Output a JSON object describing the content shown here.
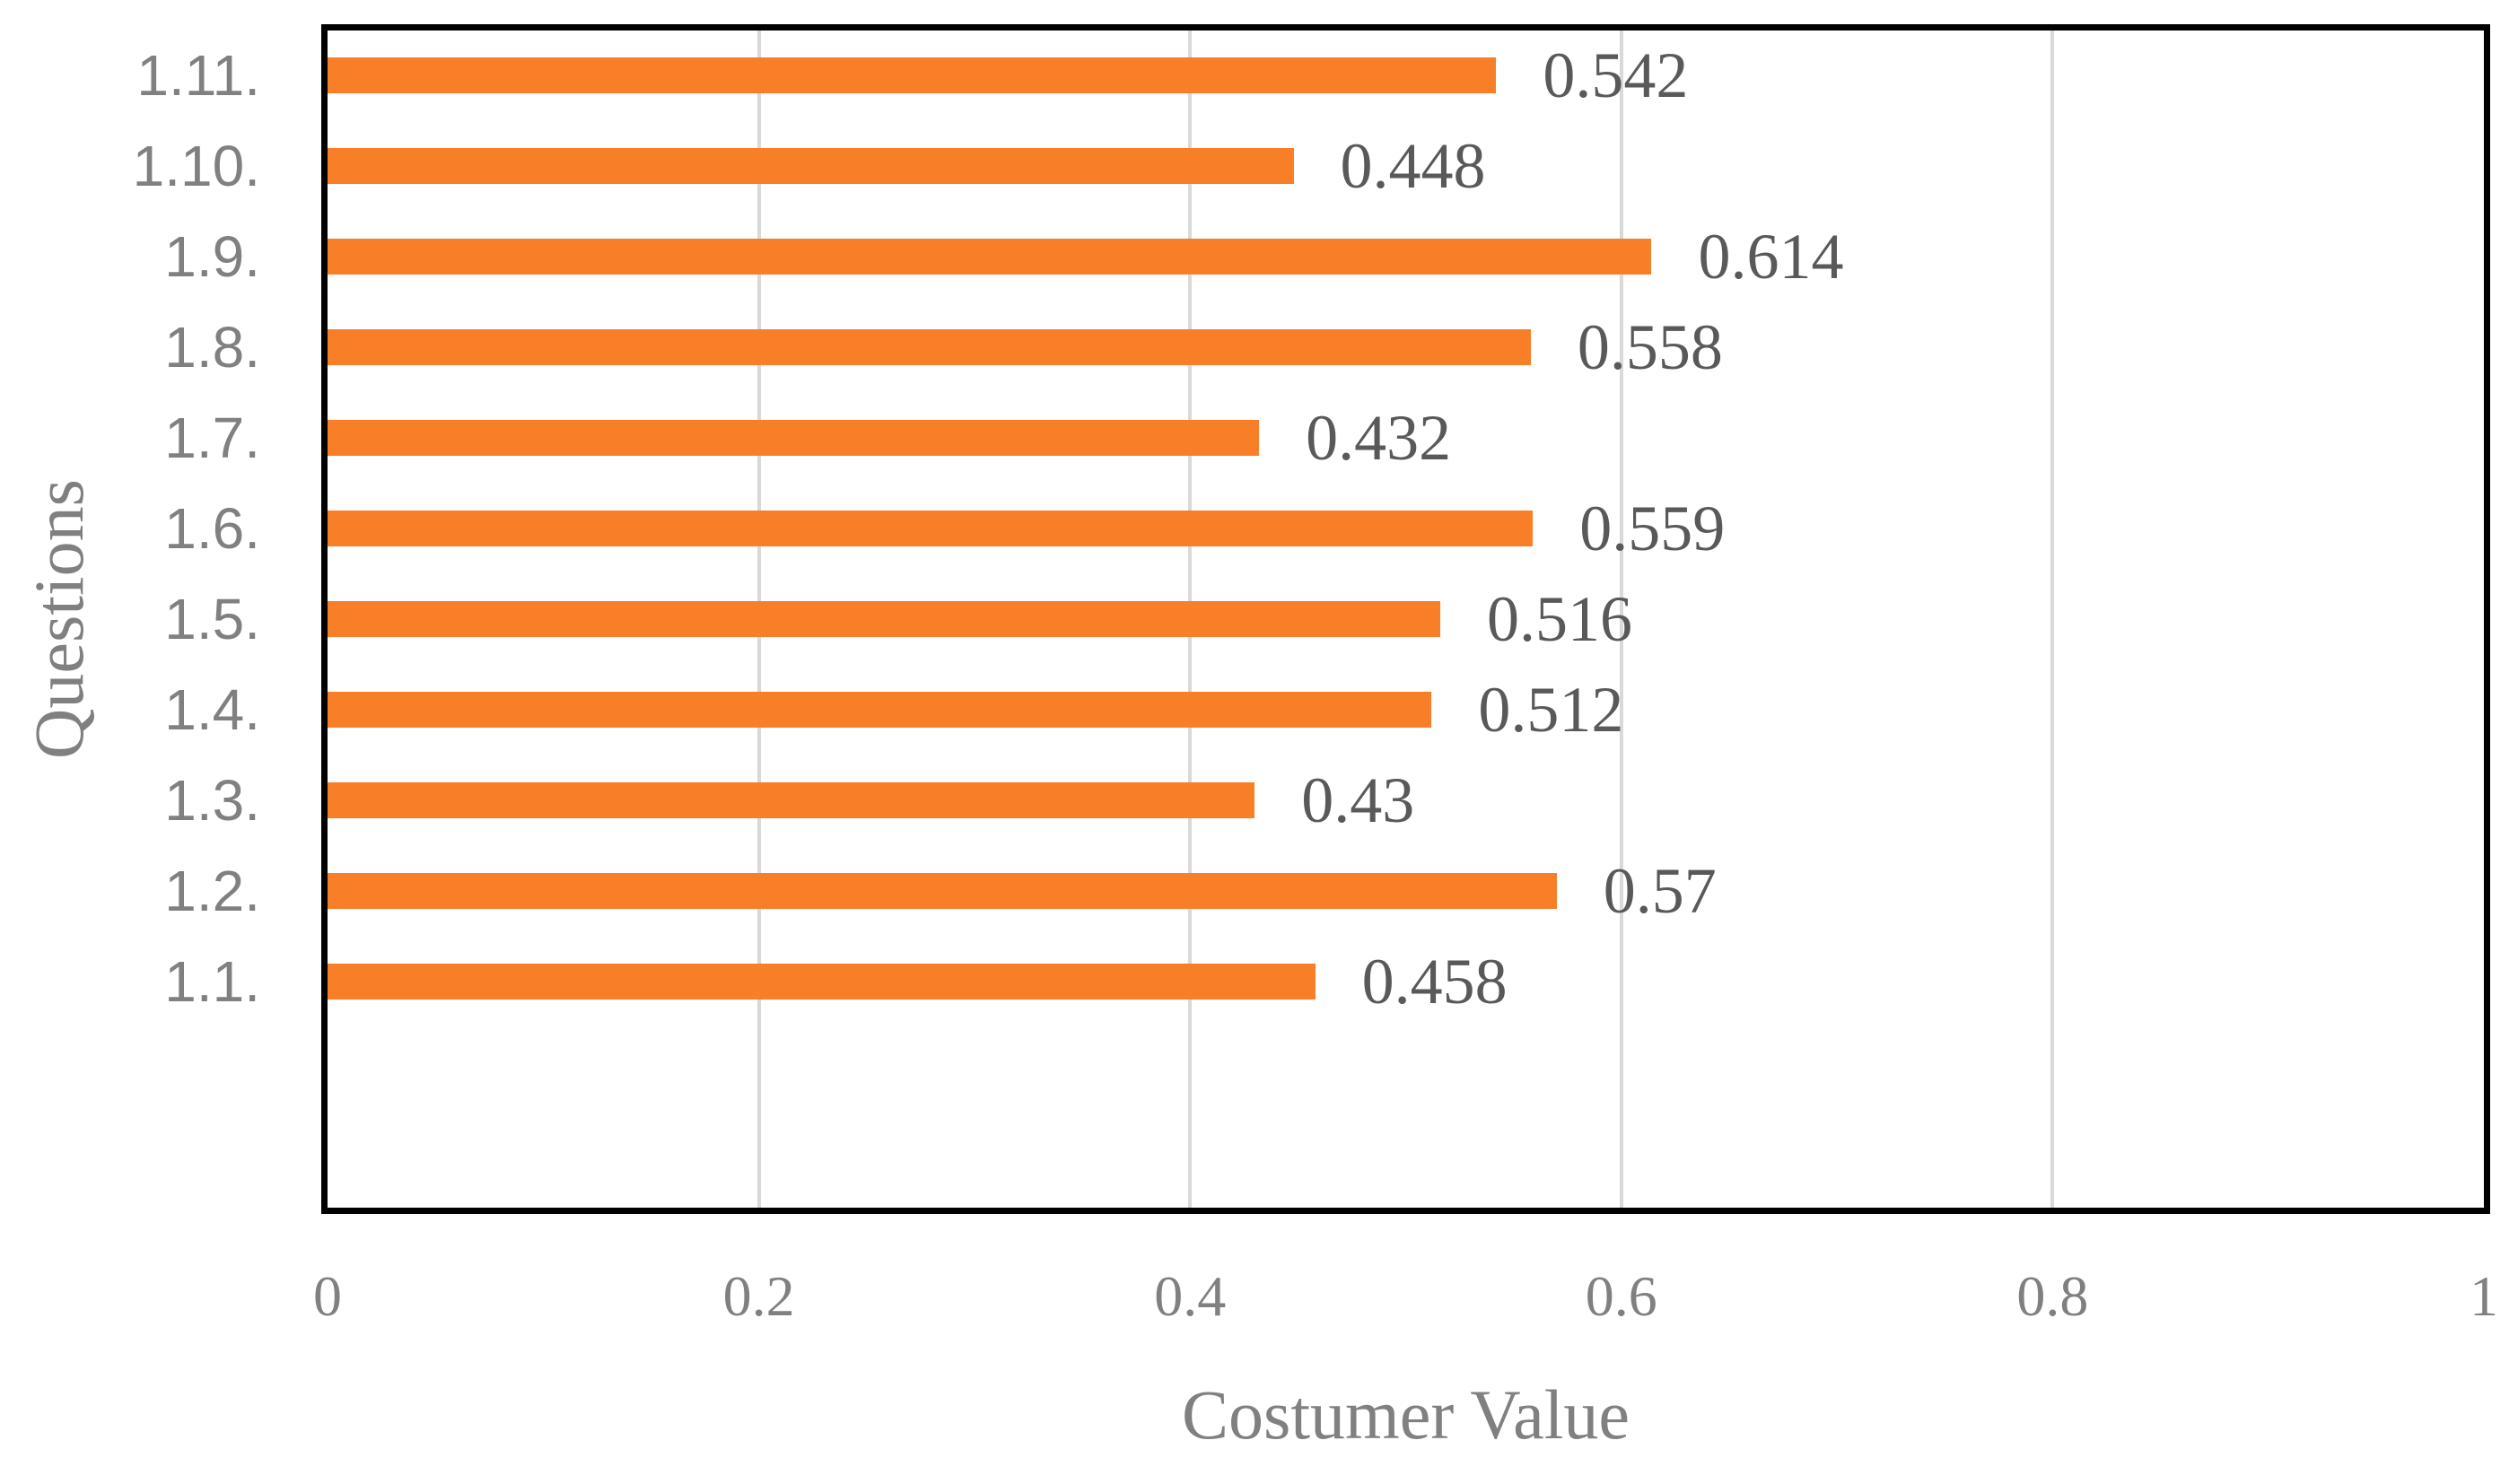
{
  "chart_data": {
    "type": "bar",
    "orientation": "horizontal",
    "title": "",
    "xlabel": "Costumer Value",
    "ylabel": "Questions",
    "categories": [
      "1.11.",
      "1.10.",
      "1.9.",
      "1.8.",
      "1.7.",
      "1.6.",
      "1.5.",
      "1.4.",
      "1.3.",
      "1.2.",
      "1.1."
    ],
    "values": [
      0.542,
      0.448,
      0.614,
      0.558,
      0.432,
      0.559,
      0.516,
      0.512,
      0.43,
      0.57,
      0.458
    ],
    "labels": [
      "0.542",
      "0.448",
      "0.614",
      "0.558",
      "0.432",
      "0.559",
      "0.516",
      "0.512",
      "0.43",
      "0.57",
      "0.458"
    ],
    "xlim": [
      0,
      1
    ],
    "xticks": [
      {
        "value": 0,
        "label": "0"
      },
      {
        "value": 0.2,
        "label": "0.2"
      },
      {
        "value": 0.4,
        "label": "0.4"
      },
      {
        "value": 0.6,
        "label": "0.6"
      },
      {
        "value": 0.8,
        "label": "0.8"
      },
      {
        "value": 1,
        "label": "1"
      }
    ],
    "grid": "vertical-major",
    "legend_position": "none",
    "empty_trailing_slots": 2,
    "colors": {
      "bar": "#F87E27",
      "data_label": "#595959",
      "axis_text": "#808080",
      "gridline": "#D9D9D9",
      "plot_border": "#000000",
      "background": "#FFFFFF"
    }
  }
}
